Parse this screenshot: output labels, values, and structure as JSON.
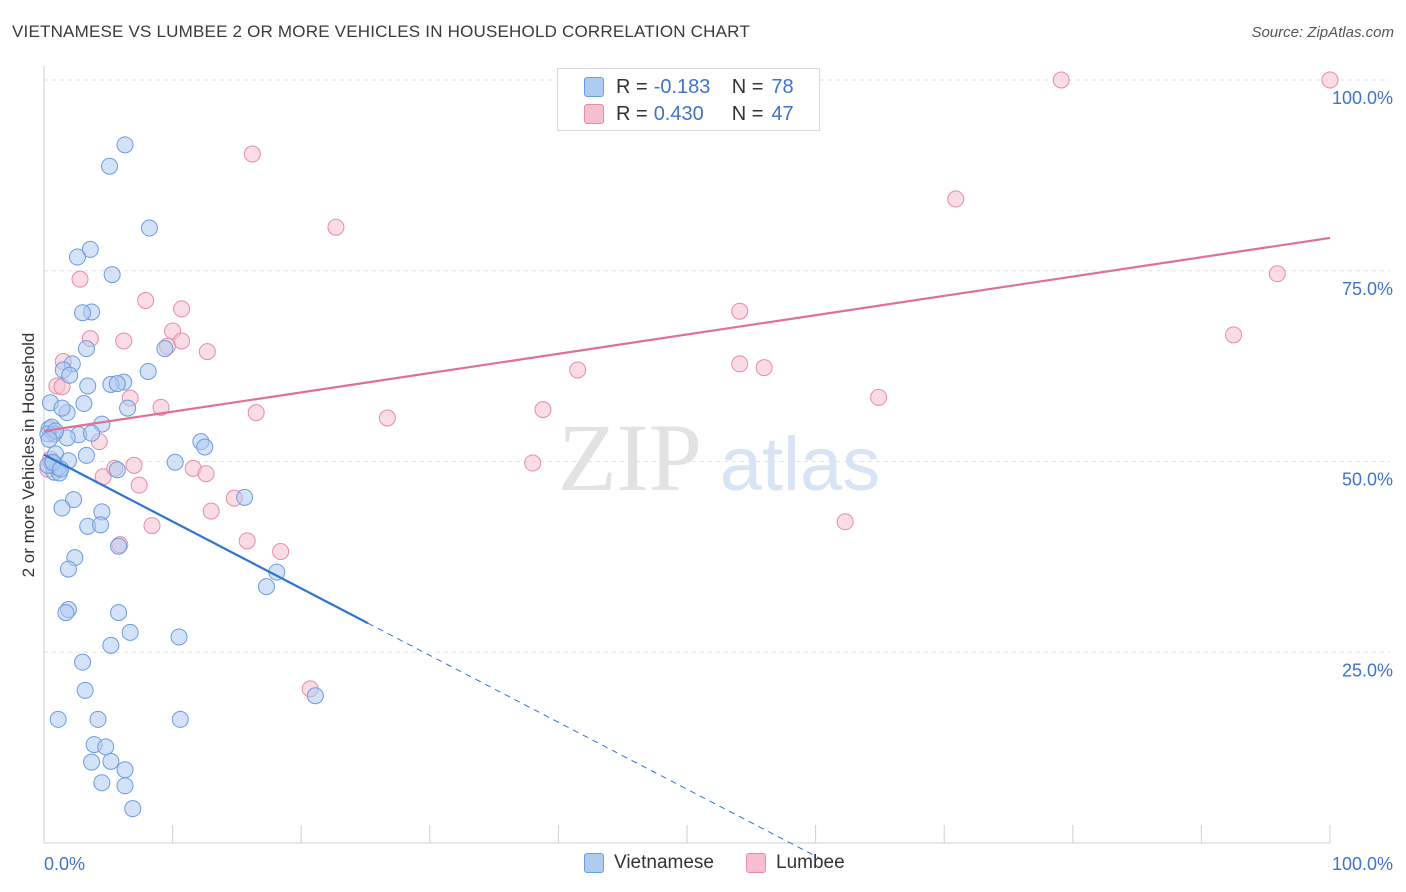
{
  "title": "VIETNAMESE VS LUMBEE 2 OR MORE VEHICLES IN HOUSEHOLD CORRELATION CHART",
  "source": "Source: ZipAtlas.com",
  "watermark": {
    "zip": "ZIP",
    "atlas": "atlas"
  },
  "legend_top": {
    "rows": [
      {
        "r_label": "R =",
        "r_value": "-0.183",
        "n_label": "N =",
        "n_value": "78"
      },
      {
        "r_label": "R =",
        "r_value": "0.430",
        "n_label": "N =",
        "n_value": "47"
      }
    ]
  },
  "legend_bottom": {
    "items": [
      "Vietnamese",
      "Lumbee"
    ]
  },
  "colors": {
    "vietnamese_fill": "#aecbf0",
    "vietnamese_stroke": "#6b9be0",
    "vietnamese_line": "#2f74d0",
    "lumbee_fill": "#f6bfd0",
    "lumbee_stroke": "#e98aa8",
    "lumbee_line": "#e06f96",
    "tick_label": "#3f73c9",
    "grid": "#e3e3e3"
  },
  "chart_data": {
    "type": "scatter",
    "title": "VIETNAMESE VS LUMBEE 2 OR MORE VEHICLES IN HOUSEHOLD CORRELATION CHART",
    "xlabel": "",
    "ylabel": "2 or more Vehicles in Household",
    "xlim": [
      0,
      100
    ],
    "ylim": [
      0,
      100
    ],
    "x_tick_labels": [
      "0.0%",
      "100.0%"
    ],
    "y_tick_labels": [
      "25.0%",
      "50.0%",
      "75.0%",
      "100.0%"
    ],
    "y_ticks": [
      25,
      50,
      75,
      100
    ],
    "grid": true,
    "legend_position": "top-center",
    "series": [
      {
        "name": "Vietnamese",
        "points": [
          [
            6.3,
            91.5
          ],
          [
            5.1,
            88.7
          ],
          [
            8.2,
            80.6
          ],
          [
            3.6,
            77.8
          ],
          [
            2.6,
            76.8
          ],
          [
            5.3,
            74.5
          ],
          [
            3.7,
            69.6
          ],
          [
            3.0,
            69.5
          ],
          [
            3.3,
            64.8
          ],
          [
            9.4,
            64.8
          ],
          [
            2.2,
            62.8
          ],
          [
            1.5,
            62.0
          ],
          [
            2.0,
            61.3
          ],
          [
            8.1,
            61.8
          ],
          [
            3.4,
            59.9
          ],
          [
            6.2,
            60.4
          ],
          [
            5.2,
            60.1
          ],
          [
            5.7,
            60.2
          ],
          [
            0.5,
            57.7
          ],
          [
            3.1,
            57.6
          ],
          [
            6.5,
            57.0
          ],
          [
            1.8,
            56.4
          ],
          [
            0.4,
            54.3
          ],
          [
            0.6,
            54.5
          ],
          [
            0.8,
            53.6
          ],
          [
            2.7,
            53.5
          ],
          [
            1.8,
            53.1
          ],
          [
            0.3,
            53.6
          ],
          [
            4.5,
            54.9
          ],
          [
            12.2,
            52.6
          ],
          [
            12.5,
            51.9
          ],
          [
            0.9,
            51.0
          ],
          [
            3.3,
            50.8
          ],
          [
            0.6,
            49.8
          ],
          [
            0.8,
            48.6
          ],
          [
            1.2,
            48.5
          ],
          [
            5.7,
            48.9
          ],
          [
            1.1,
            49.2
          ],
          [
            10.2,
            49.9
          ],
          [
            1.9,
            50.1
          ],
          [
            15.6,
            45.3
          ],
          [
            2.3,
            45.0
          ],
          [
            1.4,
            43.9
          ],
          [
            4.5,
            43.4
          ],
          [
            3.4,
            41.5
          ],
          [
            4.4,
            41.7
          ],
          [
            5.8,
            38.9
          ],
          [
            2.4,
            37.4
          ],
          [
            18.1,
            35.5
          ],
          [
            1.9,
            35.9
          ],
          [
            17.3,
            33.6
          ],
          [
            1.9,
            30.6
          ],
          [
            1.7,
            30.2
          ],
          [
            5.8,
            30.2
          ],
          [
            6.7,
            27.6
          ],
          [
            10.5,
            27.0
          ],
          [
            5.2,
            25.9
          ],
          [
            3.0,
            23.7
          ],
          [
            3.2,
            20.0
          ],
          [
            21.1,
            19.3
          ],
          [
            1.1,
            16.2
          ],
          [
            4.2,
            16.2
          ],
          [
            10.6,
            16.2
          ],
          [
            3.9,
            12.9
          ],
          [
            4.8,
            12.6
          ],
          [
            3.7,
            10.6
          ],
          [
            5.2,
            10.7
          ],
          [
            6.3,
            9.6
          ],
          [
            4.5,
            7.9
          ],
          [
            6.3,
            7.5
          ],
          [
            6.9,
            4.5
          ],
          [
            0.3,
            49.5
          ],
          [
            0.7,
            49.9
          ],
          [
            1.3,
            49.0
          ],
          [
            0.9,
            54.0
          ],
          [
            0.4,
            52.9
          ],
          [
            1.4,
            57.0
          ],
          [
            3.7,
            53.7
          ]
        ]
      },
      {
        "name": "Lumbee",
        "points": [
          [
            79.1,
            100.0
          ],
          [
            100.0,
            100.0
          ],
          [
            16.2,
            90.3
          ],
          [
            70.9,
            84.4
          ],
          [
            22.7,
            80.7
          ],
          [
            2.8,
            73.9
          ],
          [
            95.9,
            74.6
          ],
          [
            7.9,
            71.1
          ],
          [
            10.7,
            70.0
          ],
          [
            54.1,
            69.7
          ],
          [
            10.0,
            67.1
          ],
          [
            3.6,
            66.1
          ],
          [
            6.2,
            65.8
          ],
          [
            10.7,
            65.8
          ],
          [
            9.6,
            65.1
          ],
          [
            12.7,
            64.4
          ],
          [
            92.5,
            66.6
          ],
          [
            54.1,
            62.8
          ],
          [
            56.0,
            62.3
          ],
          [
            1.5,
            63.1
          ],
          [
            41.5,
            62.0
          ],
          [
            1.0,
            59.9
          ],
          [
            1.4,
            59.8
          ],
          [
            6.7,
            58.3
          ],
          [
            64.9,
            58.4
          ],
          [
            9.1,
            57.1
          ],
          [
            38.8,
            56.8
          ],
          [
            16.5,
            56.4
          ],
          [
            26.7,
            55.7
          ],
          [
            4.3,
            52.6
          ],
          [
            0.5,
            50.3
          ],
          [
            11.6,
            49.1
          ],
          [
            7.0,
            49.5
          ],
          [
            38.0,
            49.8
          ],
          [
            4.6,
            48.0
          ],
          [
            12.6,
            48.4
          ],
          [
            5.5,
            49.1
          ],
          [
            7.4,
            46.9
          ],
          [
            14.8,
            45.2
          ],
          [
            13.0,
            43.5
          ],
          [
            62.3,
            42.1
          ],
          [
            8.4,
            41.6
          ],
          [
            15.8,
            39.6
          ],
          [
            5.9,
            39.1
          ],
          [
            18.4,
            38.2
          ],
          [
            20.7,
            20.2
          ],
          [
            0.3,
            49.0
          ]
        ]
      }
    ],
    "trendlines": [
      {
        "series": "Vietnamese",
        "solid_x": [
          0,
          25.2
        ],
        "dashed_x": [
          25.2,
          61
        ],
        "y_at_0": 50.9,
        "slope": -0.877
      },
      {
        "series": "Lumbee",
        "x": [
          0,
          100
        ],
        "y_at_0": 54.0,
        "y_at_100": 79.3
      }
    ]
  }
}
